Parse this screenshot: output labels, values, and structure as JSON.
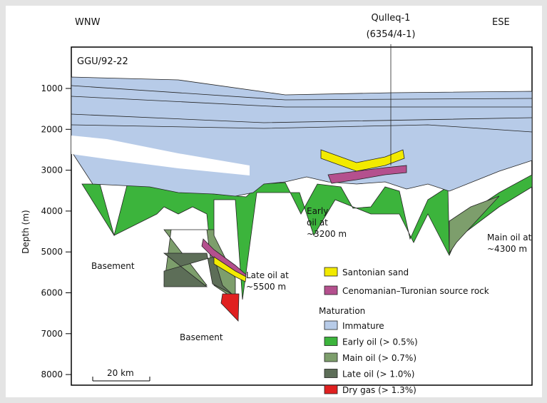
{
  "header": {
    "left": "WNW",
    "right": "ESE",
    "well_name": "Qulleq-1",
    "well_id": "(6354/4-1)",
    "line": "GGU/92-22"
  },
  "axis": {
    "label": "Depth (m)",
    "ticks": [
      1000,
      2000,
      3000,
      4000,
      5000,
      6000,
      7000,
      8000
    ]
  },
  "annotations": {
    "basement_left": "Basement",
    "basement_center": "Basement",
    "late_oil": [
      "Late oil at",
      "~5500 m"
    ],
    "early_oil": [
      "Early",
      "oil at",
      "~3200 m"
    ],
    "main_oil": [
      "Main oil at",
      "~4300 m"
    ]
  },
  "scale_bar": "20 km",
  "legend": {
    "items": [
      {
        "label": "Santonian sand",
        "color": "#f2ea00"
      },
      {
        "label": "Cenomanian–Turonian source rock",
        "color": "#b4508e"
      }
    ],
    "maturation_title": "Maturation",
    "maturation_items": [
      {
        "label": "Immature",
        "color": "#b7cbe8"
      },
      {
        "label": "Early oil (> 0.5%)",
        "color": "#3cb43c"
      },
      {
        "label": "Main oil (> 0.7%)",
        "color": "#7d9e6c"
      },
      {
        "label": "Late oil  (> 1.0%)",
        "color": "#5d6e58"
      },
      {
        "label": "Dry gas  (> 1.3%)",
        "color": "#e02020"
      }
    ]
  }
}
